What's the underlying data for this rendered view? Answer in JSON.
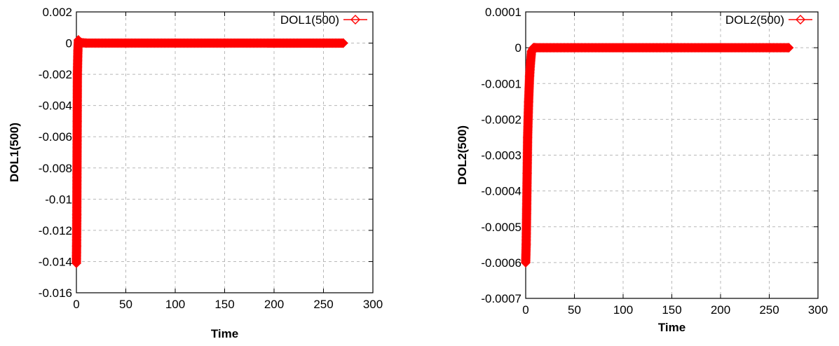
{
  "chart_data": [
    {
      "type": "line",
      "xlabel": "Time",
      "ylabel": "DOL1(500)",
      "xlim": [
        0,
        300
      ],
      "ylim": [
        -0.016,
        0.002
      ],
      "xticks": [
        0,
        50,
        100,
        150,
        200,
        250,
        300
      ],
      "xtick_labels": [
        "0",
        "50",
        "100",
        "150",
        "200",
        "250",
        "300"
      ],
      "yticks": [
        -0.016,
        -0.014,
        -0.012,
        -0.01,
        -0.008,
        -0.006,
        -0.004,
        -0.002,
        0,
        0.002
      ],
      "ytick_labels": [
        "-0.016",
        "-0.014",
        "-0.012",
        "-0.01",
        "-0.008",
        "-0.006",
        "-0.004",
        "-0.002",
        "0",
        "0.002"
      ],
      "grid": true,
      "legend_position": "top-right",
      "series": [
        {
          "name": "DOL1(500)",
          "color": "#ff0000",
          "marker": "diamond",
          "x": [
            0,
            0.2,
            0.4,
            0.6,
            0.8,
            1.0,
            1.5,
            2,
            3,
            5,
            10,
            50,
            100,
            150,
            200,
            250,
            270
          ],
          "values": [
            -0.0141,
            -0.013,
            -0.011,
            -0.008,
            -0.005,
            -0.002,
            -0.0005,
            0.0002,
            0.0001,
            3e-05,
            0,
            0,
            0,
            0,
            0,
            0,
            0
          ]
        }
      ]
    },
    {
      "type": "line",
      "xlabel": "Time",
      "ylabel": "DOL2(500)",
      "xlim": [
        0,
        300
      ],
      "ylim": [
        -0.0007,
        0.0001
      ],
      "xticks": [
        0,
        50,
        100,
        150,
        200,
        250,
        300
      ],
      "xtick_labels": [
        "0",
        "50",
        "100",
        "150",
        "200",
        "250",
        "300"
      ],
      "yticks": [
        -0.0007,
        -0.0006,
        -0.0005,
        -0.0004,
        -0.0003,
        -0.0002,
        -0.0001,
        0,
        0.0001
      ],
      "ytick_labels": [
        "-0.0007",
        "-0.0006",
        "-0.0005",
        "-0.0004",
        "-0.0003",
        "-0.0002",
        "-0.0001",
        "0",
        "0.0001"
      ],
      "grid": true,
      "legend_position": "top-right",
      "series": [
        {
          "name": "DOL2(500)",
          "color": "#ff0000",
          "marker": "diamond",
          "x": [
            0,
            0.5,
            1,
            1.5,
            2,
            3,
            4,
            5,
            6,
            8,
            10,
            50,
            100,
            150,
            200,
            250,
            270
          ],
          "values": [
            -0.0006,
            -0.00055,
            -0.00045,
            -0.00035,
            -0.00025,
            -0.00015,
            -8e-05,
            -4e-05,
            -1e-05,
            0,
            0,
            0,
            0,
            0,
            0,
            0,
            0
          ]
        }
      ]
    }
  ]
}
